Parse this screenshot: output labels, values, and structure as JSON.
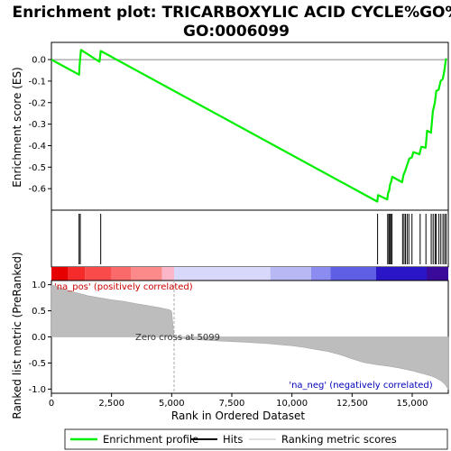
{
  "chart_data": {
    "type": "line",
    "title_line1": "Enrichment plot: TRICARBOXYLIC ACID CYCLE%GO%",
    "title_line2": "GO:0006099",
    "xlabel": "Rank in Ordered Dataset",
    "ylabel_top": "Enrichment score (ES)",
    "ylabel_bottom": "Ranked list metric (PreRanked)",
    "xlim": [
      0,
      16500
    ],
    "x_ticks": [
      0,
      2500,
      5000,
      7500,
      10000,
      12500,
      15000
    ],
    "x_tick_labels": [
      "0",
      "2,500",
      "5,000",
      "7,500",
      "10,000",
      "12,500",
      "15,000"
    ],
    "es_ylim": [
      -0.7,
      0.08
    ],
    "es_ticks": [
      0.0,
      -0.1,
      -0.2,
      -0.3,
      -0.4,
      -0.5,
      -0.6
    ],
    "es_tick_labels": [
      "0.0",
      "-0.1",
      "-0.2",
      "-0.3",
      "-0.4",
      "-0.5",
      "-0.6"
    ],
    "metric_ylim": [
      -1.08,
      1.08
    ],
    "metric_ticks": [
      1.0,
      0.5,
      0.0,
      -0.5,
      -1.0
    ],
    "metric_tick_labels": [
      "1.0",
      "0.5",
      "0.0",
      "-0.5",
      "-1.0"
    ],
    "series": [
      {
        "name": "Enrichment profile",
        "color": "#00ee00",
        "x": [
          0,
          1150,
          1170,
          1200,
          1230,
          2000,
          2050,
          13550,
          13580,
          13960,
          14000,
          14040,
          14080,
          14120,
          14170,
          14580,
          14640,
          14700,
          14760,
          14820,
          14880,
          14980,
          15050,
          15300,
          15380,
          15560,
          15620,
          15780,
          15860,
          15940,
          16000,
          16100,
          16180,
          16270,
          16340,
          16400,
          16430
        ],
        "y": [
          0.0,
          -0.07,
          -0.03,
          0.01,
          0.045,
          -0.01,
          0.04,
          -0.66,
          -0.63,
          -0.65,
          -0.62,
          -0.61,
          -0.58,
          -0.57,
          -0.545,
          -0.57,
          -0.535,
          -0.52,
          -0.5,
          -0.48,
          -0.46,
          -0.455,
          -0.43,
          -0.44,
          -0.405,
          -0.41,
          -0.33,
          -0.34,
          -0.24,
          -0.2,
          -0.145,
          -0.14,
          -0.1,
          -0.09,
          -0.05,
          0.0,
          0.005
        ]
      }
    ],
    "hits": [
      1150,
      1200,
      2050,
      13560,
      13980,
      14030,
      14070,
      14110,
      14160,
      14600,
      14660,
      14720,
      14790,
      14860,
      14990,
      15330,
      15570,
      15790,
      15870,
      15950,
      16000,
      16110,
      16190,
      16280,
      16350,
      16410
    ],
    "zero_cross": 5099,
    "zero_cross_label": "Zero cross at 5099",
    "pos_label": "'na_pos' (positively correlated)",
    "neg_label": "'na_neg' (negatively correlated)",
    "metric_profile": {
      "x": [
        0,
        300,
        600,
        900,
        1200,
        1500,
        2000,
        2500,
        3000,
        3500,
        4000,
        4500,
        4900,
        5000,
        5099,
        5200,
        6000,
        7000,
        8000,
        9000,
        10000,
        10500,
        11000,
        11500,
        12000,
        12500,
        13000,
        13500,
        14000,
        14500,
        15000,
        15500,
        15800,
        16000,
        16200,
        16350,
        16450,
        16500
      ],
      "y": [
        1.0,
        0.95,
        0.9,
        0.86,
        0.83,
        0.79,
        0.75,
        0.71,
        0.68,
        0.64,
        0.6,
        0.56,
        0.52,
        0.49,
        0.0,
        -0.02,
        -0.05,
        -0.08,
        -0.1,
        -0.13,
        -0.17,
        -0.2,
        -0.24,
        -0.28,
        -0.34,
        -0.42,
        -0.49,
        -0.53,
        -0.56,
        -0.6,
        -0.65,
        -0.71,
        -0.75,
        -0.79,
        -0.84,
        -0.9,
        -0.97,
        -1.0
      ]
    },
    "color_bar": [
      {
        "x0": 0,
        "x1": 700,
        "color": "#e60000"
      },
      {
        "x0": 700,
        "x1": 1400,
        "color": "#f52b2b"
      },
      {
        "x0": 1400,
        "x1": 2500,
        "color": "#fa4b4b"
      },
      {
        "x0": 2500,
        "x1": 3300,
        "color": "#fb6a6a"
      },
      {
        "x0": 3300,
        "x1": 4600,
        "color": "#fc8a8a"
      },
      {
        "x0": 4600,
        "x1": 5100,
        "color": "#fcb6c9"
      },
      {
        "x0": 5100,
        "x1": 9100,
        "color": "#d8d8fb"
      },
      {
        "x0": 9100,
        "x1": 10800,
        "color": "#b8b8f5"
      },
      {
        "x0": 10800,
        "x1": 11600,
        "color": "#8c8cf0"
      },
      {
        "x0": 11600,
        "x1": 13500,
        "color": "#5f5fe6"
      },
      {
        "x0": 13500,
        "x1": 15600,
        "color": "#2a16c6"
      },
      {
        "x0": 15600,
        "x1": 16500,
        "color": "#3a0a9a"
      }
    ],
    "legend": [
      {
        "label": "Enrichment profile",
        "kind": "line",
        "color": "#00ee00"
      },
      {
        "label": "Hits",
        "kind": "line",
        "color": "#000000"
      },
      {
        "label": "Ranking metric scores",
        "kind": "line",
        "color": "#c0c0c0"
      }
    ]
  }
}
